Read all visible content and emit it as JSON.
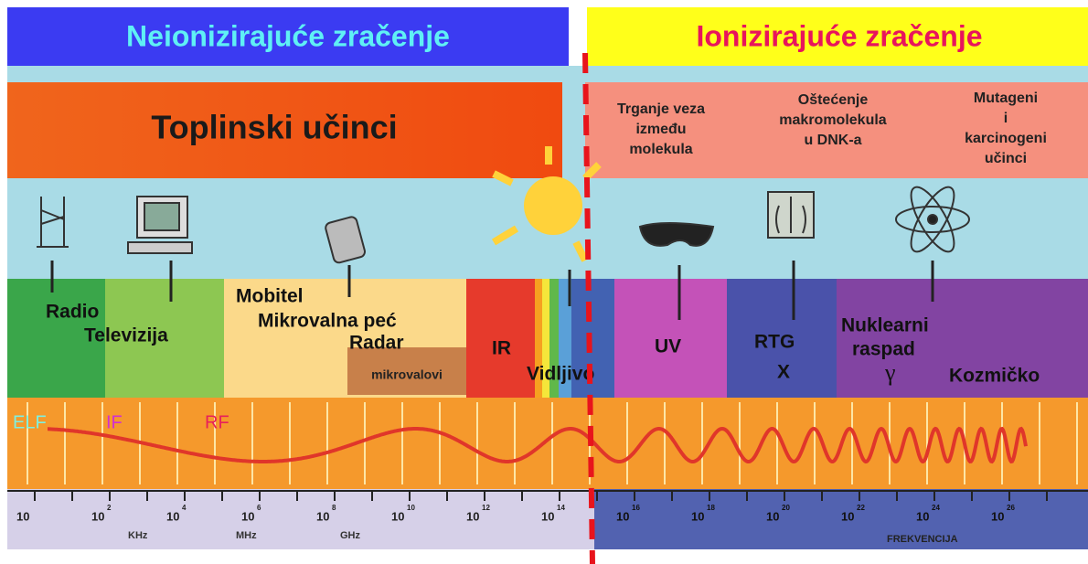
{
  "header": {
    "left": "Neionizirajuće zračenje",
    "right": "Ionizirajuće zračenje"
  },
  "effects": {
    "thermal": "Toplinski učinci",
    "ionizing": [
      [
        "Trganje veza",
        "između",
        "molekula"
      ],
      [
        "Oštećenje",
        "makromolekula",
        "u DNK-a"
      ],
      [
        "Mutageni",
        "i",
        "karcinogeni",
        "učinci"
      ]
    ]
  },
  "bands": {
    "radio": "Radio",
    "tv": "Televizija",
    "mobile": "Mobitel",
    "microwave_oven": "Mikrovalna peć",
    "radar": "Radar",
    "microwaves": "mikrovalovi",
    "ir": "IR",
    "visible": "Vidljivo",
    "uv": "UV",
    "xray": "RTG",
    "x": "X",
    "nuclear": [
      "Nuklearni",
      "raspad"
    ],
    "gamma": "γ",
    "cosmic": "Kozmičko"
  },
  "wave_labels": {
    "elf": "ELF",
    "if": "IF",
    "rf": "RF"
  },
  "axis": {
    "ticks": [
      {
        "base": "10"
      },
      {
        "base": "10",
        "exp": "2"
      },
      {
        "base": "10",
        "exp": "4"
      },
      {
        "base": "10",
        "exp": "6"
      },
      {
        "base": "10",
        "exp": "8"
      },
      {
        "base": "10",
        "exp": "10"
      },
      {
        "base": "10",
        "exp": "12"
      },
      {
        "base": "10",
        "exp": "14"
      },
      {
        "base": "10",
        "exp": "16"
      },
      {
        "base": "10",
        "exp": "18"
      },
      {
        "base": "10",
        "exp": "20"
      },
      {
        "base": "10",
        "exp": "22"
      },
      {
        "base": "10",
        "exp": "24"
      },
      {
        "base": "10",
        "exp": "26"
      }
    ],
    "units": [
      "KHz",
      "MHz",
      "GHz"
    ],
    "title": "FREKVENCIJA"
  }
}
